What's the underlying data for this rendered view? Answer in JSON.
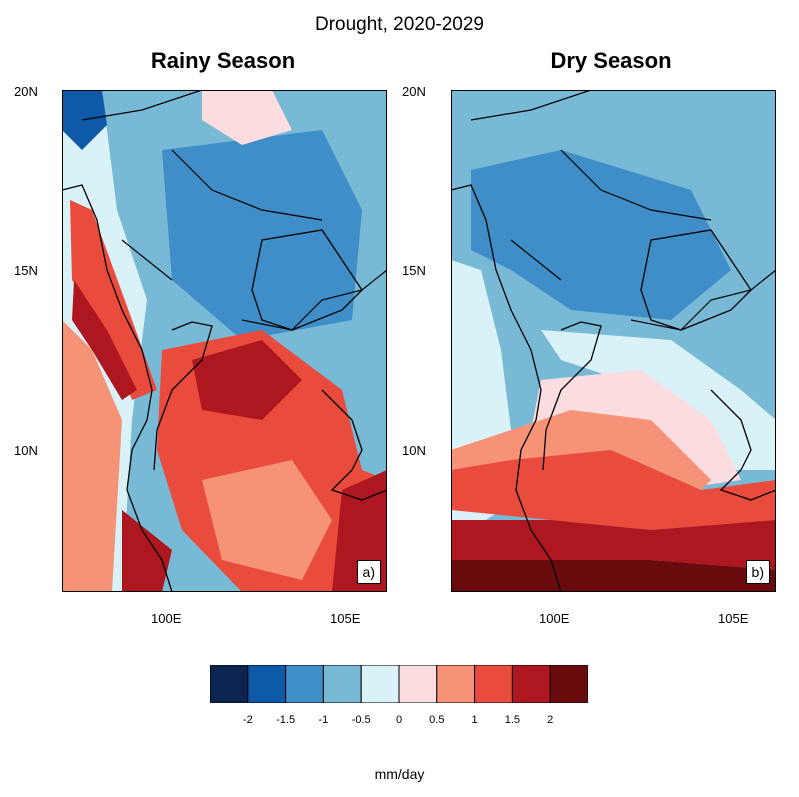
{
  "title": "Drought, 2020-2029",
  "panels": [
    {
      "title": "Rainy Season",
      "label": "a)"
    },
    {
      "title": "Dry Season",
      "label": "b)"
    }
  ],
  "axes": {
    "y_ticks": [
      "20N",
      "15N",
      "10N"
    ],
    "x_ticks": [
      "100E",
      "105E"
    ]
  },
  "colorbar": {
    "colors": [
      "#0b2550",
      "#0f5aa8",
      "#3f8ec8",
      "#78b9d6",
      "#d9f2f8",
      "#fbdde0",
      "#f69377",
      "#e94b3c",
      "#af1720",
      "#690a0d"
    ],
    "labels": [
      "-2",
      "-1.5",
      "-1",
      "-0.5",
      "0",
      "0.5",
      "1",
      "1.5",
      "2"
    ],
    "units": "mm/day"
  }
}
